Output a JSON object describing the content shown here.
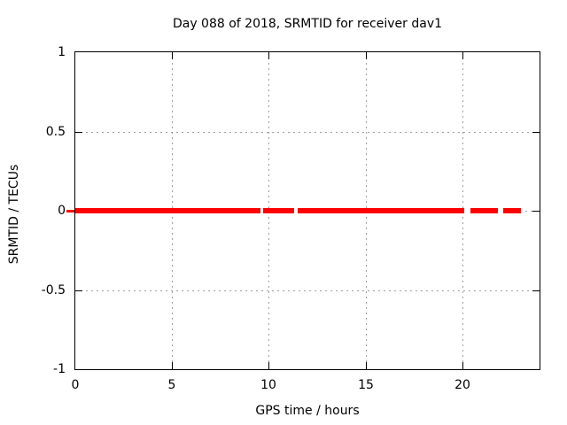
{
  "title": "Day 088 of 2018, SRMTID for receiver dav1",
  "colors": {
    "background": "#ffffff",
    "border": "#000000",
    "grid": "#9e9e9e",
    "accent": "#ff0000",
    "text": "#000000"
  },
  "chart_data": {
    "type": "line",
    "title": "Day 088 of 2018, SRMTID for receiver dav1",
    "xlabel": "GPS time / hours",
    "ylabel": "SRMTID / TECUs",
    "xlim": [
      0,
      24
    ],
    "ylim": [
      -1,
      1
    ],
    "grid": true,
    "legend": false,
    "x_ticks": [
      {
        "value": 0,
        "label": "0"
      },
      {
        "value": 5,
        "label": "5"
      },
      {
        "value": 10,
        "label": "10"
      },
      {
        "value": 15,
        "label": "15"
      },
      {
        "value": 20,
        "label": "20"
      }
    ],
    "y_ticks": [
      {
        "value": 1,
        "label": "1"
      },
      {
        "value": 0.5,
        "label": "0.5"
      },
      {
        "value": 0,
        "label": "0"
      },
      {
        "value": -0.5,
        "label": "-0.5"
      },
      {
        "value": -1,
        "label": "-1"
      }
    ],
    "series": [
      {
        "name": "SRMTID",
        "color": "#ff0000",
        "y_value": 0,
        "description": "thick horizontal line at y=0 with short dropout gaps",
        "segments_x_hours": [
          [
            0.0,
            9.58
          ],
          [
            9.72,
            11.31
          ],
          [
            11.5,
            20.12
          ],
          [
            20.44,
            21.85
          ],
          [
            22.13,
            23.04
          ]
        ]
      }
    ]
  }
}
